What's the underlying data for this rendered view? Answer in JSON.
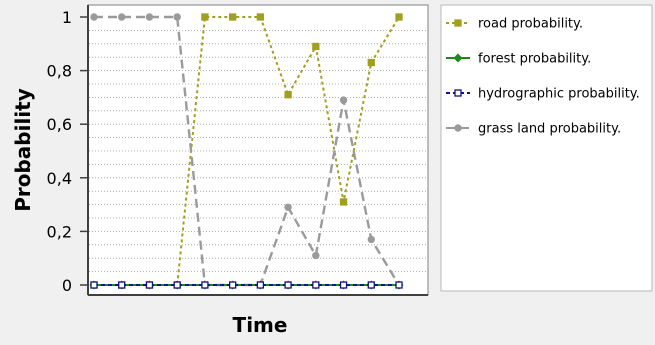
{
  "chart_data": {
    "type": "line",
    "title": "",
    "xlabel": "Time",
    "ylabel": "Probability",
    "ylim": [
      0,
      1
    ],
    "yticks": [
      "0",
      "0,2",
      "0,4",
      "0,6",
      "0,8",
      "1"
    ],
    "ytick_values": [
      0,
      0.2,
      0.4,
      0.6,
      0.8,
      1
    ],
    "x": [
      1,
      2,
      3,
      4,
      5,
      6,
      7,
      8,
      9,
      10,
      11,
      12
    ],
    "grid": true,
    "legend_placement": "right",
    "series": [
      {
        "name": "road probability.",
        "color": "#a0a020",
        "dash": "dotted",
        "marker": "square",
        "values": [
          0,
          0,
          0,
          0,
          1,
          1,
          1,
          0.71,
          0.89,
          0.31,
          0.83,
          1
        ]
      },
      {
        "name": "forest probability.",
        "color": "#1a8c1a",
        "dash": "solid",
        "marker": "diamond",
        "values": [
          0,
          0,
          0,
          0,
          0,
          0,
          0,
          0,
          0,
          0,
          0,
          0
        ]
      },
      {
        "name": "hydrographic probability.",
        "color": "#101090",
        "dash": "dashed",
        "marker": "square",
        "values": [
          0,
          0,
          0,
          0,
          0,
          0,
          0,
          0,
          0,
          0,
          0,
          0
        ]
      },
      {
        "name": "grass land probability.",
        "color": "#9a9a9a",
        "dash": "longdash",
        "marker": "circle",
        "values": [
          1,
          1,
          1,
          1,
          0,
          0,
          0,
          0.29,
          0.11,
          0.69,
          0.17,
          0
        ]
      }
    ]
  }
}
